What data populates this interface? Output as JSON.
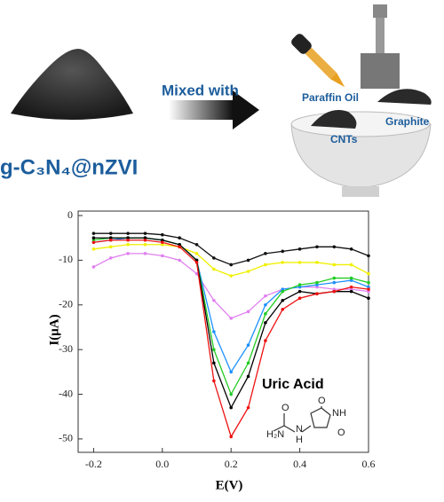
{
  "illustration": {
    "material": "g-C₃N₄@nZVI",
    "arrow_label": "Mixed with",
    "labels": [
      "Paraffin Oil",
      "Graphite",
      "CNTs"
    ]
  },
  "molecule": {
    "atoms": [
      "O",
      "NH",
      "H₂N",
      "N",
      "H",
      "O"
    ]
  },
  "chart_data": {
    "type": "line",
    "xlabel": "E(V)",
    "ylabel": "I(μA)",
    "annotation": "Uric Acid",
    "x": [
      -0.2,
      -0.15,
      -0.1,
      -0.05,
      0,
      0.05,
      0.1,
      0.15,
      0.2,
      0.25,
      0.3,
      0.35,
      0.4,
      0.45,
      0.5,
      0.55,
      0.6
    ],
    "series": [
      {
        "color": "#111111",
        "values": [
          -4,
          -4,
          -4,
          -4,
          -4.3,
          -5,
          -6.5,
          -9.5,
          -11,
          -10,
          -8.5,
          -8,
          -7.5,
          -7,
          -7,
          -7.5,
          -9
        ]
      },
      {
        "color": "#f0f000",
        "values": [
          -7.5,
          -7,
          -6.5,
          -6.5,
          -6.5,
          -7,
          -8.5,
          -12,
          -13.5,
          -12.5,
          -11,
          -10.5,
          -10.5,
          -10.5,
          -11,
          -11,
          -13
        ]
      },
      {
        "color": "#e080f0",
        "values": [
          -11.5,
          -9.5,
          -8.5,
          -8.5,
          -9,
          -10,
          -13,
          -19,
          -23,
          -21.5,
          -18,
          -16.5,
          -16,
          -16,
          -16.5,
          -16.5,
          -17
        ]
      },
      {
        "color": "#1e90ff",
        "values": [
          -6,
          -5.5,
          -5,
          -5,
          -5.5,
          -6.5,
          -10,
          -26,
          -35,
          -29,
          -20,
          -16.5,
          -16,
          -15.5,
          -15,
          -14.5,
          -16
        ]
      },
      {
        "color": "#22cc22",
        "values": [
          -5.5,
          -5,
          -5,
          -5,
          -5.5,
          -6.5,
          -10,
          -30,
          -40,
          -33,
          -22,
          -17,
          -15.5,
          -15,
          -14,
          -14,
          -15
        ]
      },
      {
        "color": "#000000",
        "values": [
          -5,
          -5,
          -5,
          -5,
          -5.5,
          -6.5,
          -10,
          -33,
          -43,
          -36,
          -24,
          -19,
          -17,
          -17.5,
          -17,
          -17,
          -18.5
        ]
      },
      {
        "color": "#ee1111",
        "values": [
          -6,
          -5.5,
          -5.5,
          -5.5,
          -6,
          -7,
          -10.5,
          -37,
          -49.5,
          -43,
          -28,
          -21,
          -18.5,
          -17.5,
          -17,
          -16,
          -16.5
        ]
      }
    ],
    "xlim": [
      -0.245,
      0.6
    ],
    "ylim": [
      -53,
      1
    ],
    "xticks": [
      -0.2,
      {
        "value": 0,
        "label": "0.0"
      },
      0.2,
      0.4,
      0.6
    ],
    "yticks": [
      0,
      -10,
      -20,
      -30,
      -40,
      -50
    ]
  }
}
